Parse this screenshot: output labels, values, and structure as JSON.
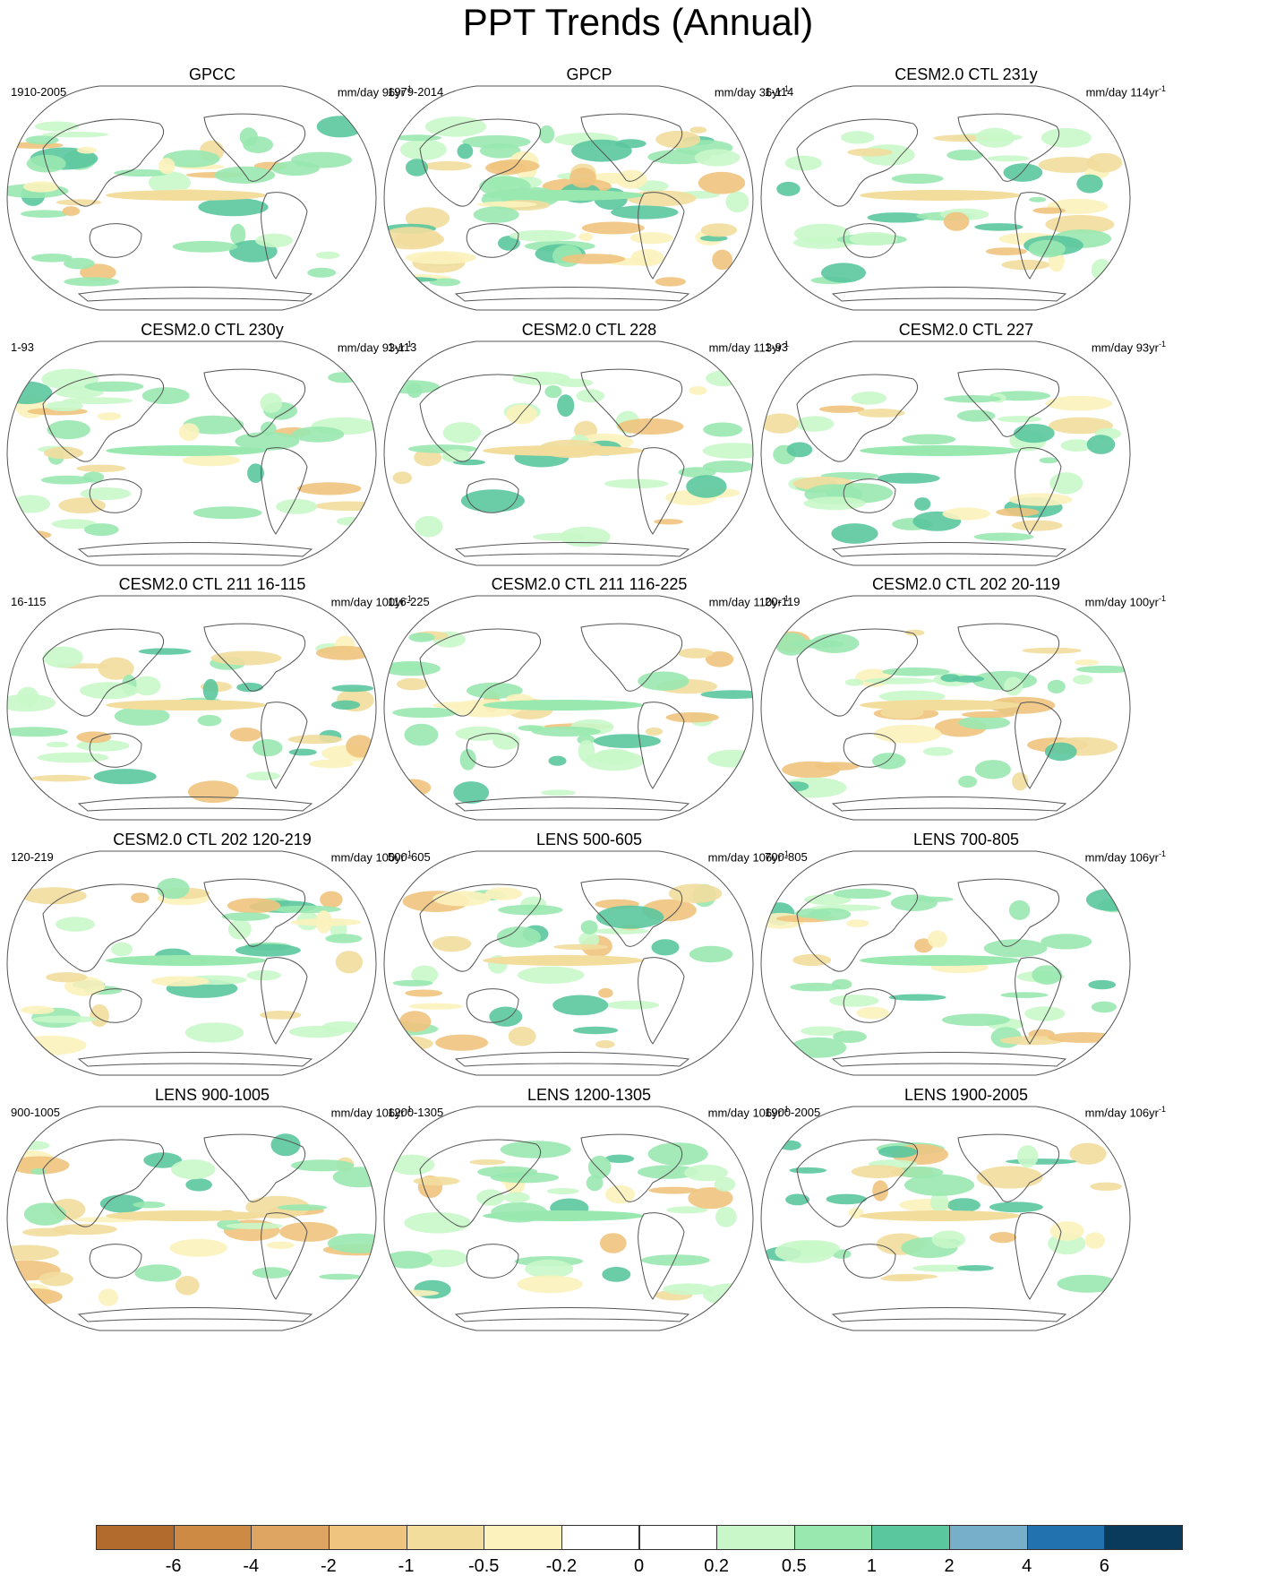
{
  "title": "PPT Trends (Annual)",
  "units_prefix": "mm/day",
  "units_suffix": "yr",
  "units_exponent": "-1",
  "palette": [
    "#b36a2d",
    "#cc8a45",
    "#dda462",
    "#efc47e",
    "#f2dd9d",
    "#fcf2bd",
    "#ffffff",
    "#ffffff",
    "#c9f7c9",
    "#99e8b0",
    "#5bc79e",
    "#77aec9",
    "#2272b0",
    "#0a3b5c"
  ],
  "colorbar_labels": [
    "-6",
    "-4",
    "-2",
    "-1",
    "-0.5",
    "-0.2",
    "0",
    "0.2",
    "0.5",
    "1",
    "2",
    "4",
    "6"
  ],
  "colors": {
    "land_outline": "#555555",
    "frame": "#555555"
  },
  "panels": [
    {
      "title": "GPCC",
      "range": "1910-2005",
      "period": "96"
    },
    {
      "title": "GPCP",
      "range": "1979-2014",
      "period": "36"
    },
    {
      "title": "CESM2.0 CTL 231y",
      "range": "1-114",
      "period": "114"
    },
    {
      "title": "CESM2.0 CTL 230y",
      "range": "1-93",
      "period": "93"
    },
    {
      "title": "CESM2.0 CTL 228",
      "range": "1-113",
      "period": "113"
    },
    {
      "title": "CESM2.0 CTL 227",
      "range": "1-93",
      "period": "93"
    },
    {
      "title": "CESM2.0 CTL 211 16-115",
      "range": "16-115",
      "period": "100"
    },
    {
      "title": "CESM2.0 CTL 211 116-225",
      "range": "116-225",
      "period": "110"
    },
    {
      "title": "CESM2.0 CTL 202 20-119",
      "range": "20-119",
      "period": "100"
    },
    {
      "title": "CESM2.0 CTL 202 120-219",
      "range": "120-219",
      "period": "100"
    },
    {
      "title": "LENS 500-605",
      "range": "500-605",
      "period": "106"
    },
    {
      "title": "LENS 700-805",
      "range": "700-805",
      "period": "106"
    },
    {
      "title": "LENS 900-1005",
      "range": "900-1005",
      "period": "106"
    },
    {
      "title": "LENS 1200-1305",
      "range": "1200-1305",
      "period": "106"
    },
    {
      "title": "LENS 1900-2005",
      "range": "1900-2005",
      "period": "106"
    }
  ]
}
